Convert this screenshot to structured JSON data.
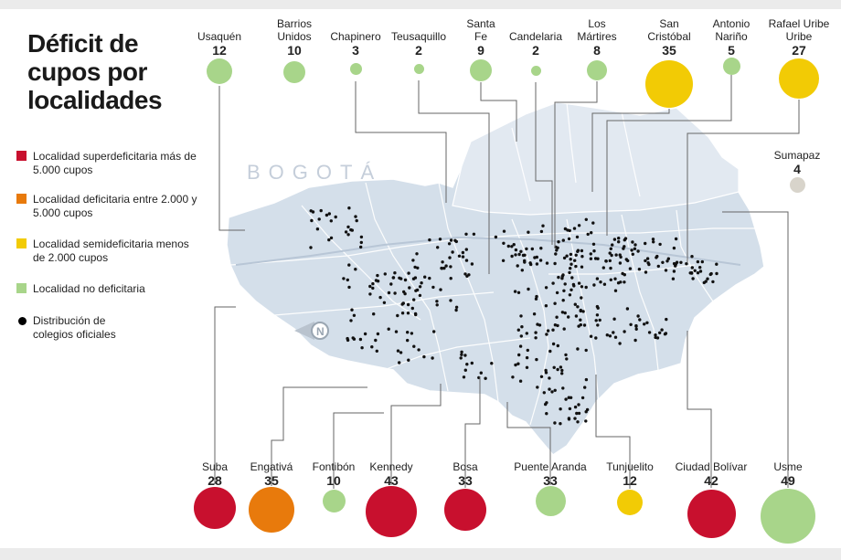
{
  "title": "Déficit de cupos por localidades",
  "city_label": "BOGOTÁ",
  "north_label": "N",
  "colors": {
    "superdeficitaria": "#c8102e",
    "deficitaria": "#e87a0c",
    "semideficitaria": "#f2cb05",
    "no_deficitaria": "#a8d58a",
    "sumapaz": "#d8d4cb",
    "map_fill": "#d4dfea",
    "map_dark": "#c6d3e0"
  },
  "legend": [
    {
      "label": "Localidad superdeficitaria más de 5.000 cupos",
      "color": "#c8102e"
    },
    {
      "label": "Localidad deficitaria entre 2.000 y 5.000 cupos",
      "color": "#e87a0c"
    },
    {
      "label": "Localidad semideficitaria menos de 2.000 cupos",
      "color": "#f2cb05"
    },
    {
      "label": "Localidad no deficitaria",
      "color": "#a8d58a"
    },
    {
      "label": "Distribución de colegios oficiales",
      "color": "#000000"
    }
  ],
  "top_localities": [
    {
      "name": "Usaquén",
      "value": "12",
      "category": "no_deficitaria"
    },
    {
      "name": "Barrios Unidos",
      "value": "10",
      "category": "no_deficitaria"
    },
    {
      "name": "Chapinero",
      "value": "3",
      "category": "no_deficitaria"
    },
    {
      "name": "Teusaquillo",
      "value": "2",
      "category": "no_deficitaria"
    },
    {
      "name": "Santa Fe",
      "value": "9",
      "category": "no_deficitaria"
    },
    {
      "name": "Candelaria",
      "value": "2",
      "category": "no_deficitaria"
    },
    {
      "name": "Los Mártires",
      "value": "8",
      "category": "no_deficitaria"
    },
    {
      "name": "San Cristóbal",
      "value": "35",
      "category": "semideficitaria"
    },
    {
      "name": "Antonio Nariño",
      "value": "5",
      "category": "no_deficitaria"
    },
    {
      "name": "Rafael Uribe Uribe",
      "value": "27",
      "category": "semideficitaria"
    }
  ],
  "sumapaz": {
    "name": "Sumapaz",
    "value": "4",
    "category": "sumapaz"
  },
  "bottom_localities": [
    {
      "name": "Suba",
      "value": "28",
      "category": "superdeficitaria"
    },
    {
      "name": "Engativá",
      "value": "35",
      "category": "deficitaria"
    },
    {
      "name": "Fontibón",
      "value": "10",
      "category": "no_deficitaria"
    },
    {
      "name": "Kennedy",
      "value": "43",
      "category": "superdeficitaria"
    },
    {
      "name": "Bosa",
      "value": "33",
      "category": "superdeficitaria"
    },
    {
      "name": "Puente Aranda",
      "value": "33",
      "category": "no_deficitaria"
    },
    {
      "name": "Tunjuelito",
      "value": "12",
      "category": "semideficitaria"
    },
    {
      "name": "Ciudad Bolívar",
      "value": "42",
      "category": "superdeficitaria"
    },
    {
      "name": "Usme",
      "value": "49",
      "category": "no_deficitaria"
    }
  ]
}
